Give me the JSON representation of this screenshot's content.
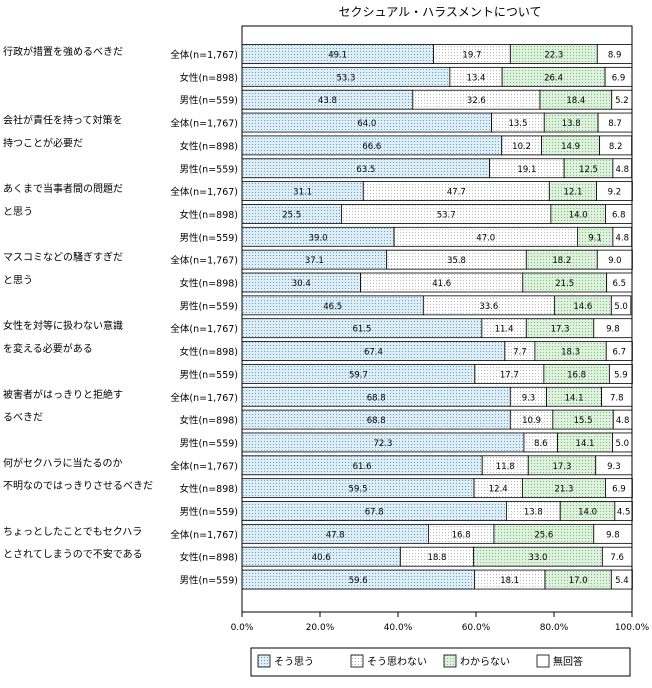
{
  "chart_data": {
    "type": "bar",
    "orientation": "horizontal",
    "stacked": "percent",
    "title": "セクシュアル・ハラスメントについて",
    "xlim": [
      0,
      100
    ],
    "x_ticks": [
      "0.0%",
      "20.0%",
      "40.0%",
      "60.0%",
      "80.0%",
      "100.0%"
    ],
    "grid": false,
    "legend_position": "bottom",
    "series": [
      {
        "name": "そう思う",
        "color": "#ddeef6",
        "pattern": "dots-blue"
      },
      {
        "name": "そう思わない",
        "color": "#ffffff",
        "pattern": "dots-light"
      },
      {
        "name": "わからない",
        "color": "#ddf1dd",
        "pattern": "dots-green"
      },
      {
        "name": "無回答",
        "color": "#ffffff",
        "pattern": "none"
      }
    ],
    "groups": [
      {
        "label": [
          "行政が措置を強めるべきだ"
        ],
        "rows": [
          {
            "name": "全体(n=1,767)",
            "values": [
              49.1,
              19.7,
              22.3,
              8.9
            ]
          },
          {
            "name": "女性(n=898)",
            "values": [
              53.3,
              13.4,
              26.4,
              6.9
            ]
          },
          {
            "name": "男性(n=559)",
            "values": [
              43.8,
              32.6,
              18.4,
              5.2
            ]
          }
        ]
      },
      {
        "label": [
          "会社が責任を持って対策を",
          "持つことが必要だ"
        ],
        "rows": [
          {
            "name": "全体(n=1,767)",
            "values": [
              64.0,
              13.5,
              13.8,
              8.7
            ]
          },
          {
            "name": "女性(n=898)",
            "values": [
              66.6,
              10.2,
              14.9,
              8.2
            ]
          },
          {
            "name": "男性(n=559)",
            "values": [
              63.5,
              19.1,
              12.5,
              4.8
            ]
          }
        ]
      },
      {
        "label": [
          "あくまで当事者間の問題だ",
          "と思う"
        ],
        "rows": [
          {
            "name": "全体(n=1,767)",
            "values": [
              31.1,
              47.7,
              12.1,
              9.2
            ]
          },
          {
            "name": "女性(n=898)",
            "values": [
              25.5,
              53.7,
              14.0,
              6.8
            ]
          },
          {
            "name": "男性(n=559)",
            "values": [
              39.0,
              47.0,
              9.1,
              4.8
            ]
          }
        ]
      },
      {
        "label": [
          "マスコミなどの騒ぎすぎだ",
          "と思う"
        ],
        "rows": [
          {
            "name": "全体(n=1,767)",
            "values": [
              37.1,
              35.8,
              18.2,
              9.0
            ]
          },
          {
            "name": "女性(n=898)",
            "values": [
              30.4,
              41.6,
              21.5,
              6.5
            ]
          },
          {
            "name": "男性(n=559)",
            "values": [
              46.5,
              33.6,
              14.6,
              5.0
            ]
          }
        ]
      },
      {
        "label": [
          "女性を対等に扱わない意識",
          "を変える必要がある"
        ],
        "rows": [
          {
            "name": "全体(n=1,767)",
            "values": [
              61.5,
              11.4,
              17.3,
              9.8
            ]
          },
          {
            "name": "女性(n=898)",
            "values": [
              67.4,
              7.7,
              18.3,
              6.7
            ]
          },
          {
            "name": "男性(n=559)",
            "values": [
              59.7,
              17.7,
              16.8,
              5.9
            ]
          }
        ]
      },
      {
        "label": [
          "被害者がはっきりと拒絶す",
          "るべきだ"
        ],
        "rows": [
          {
            "name": "全体(n=1,767)",
            "values": [
              68.8,
              9.3,
              14.1,
              7.8
            ]
          },
          {
            "name": "女性(n=898)",
            "values": [
              68.8,
              10.9,
              15.5,
              4.8
            ]
          },
          {
            "name": "男性(n=559)",
            "values": [
              72.3,
              8.6,
              14.1,
              5.0
            ]
          }
        ]
      },
      {
        "label": [
          "何がセクハラに当たるのか",
          "不明なのではっきりさせるべきだ"
        ],
        "rows": [
          {
            "name": "全体(n=1,767)",
            "values": [
              61.6,
              11.8,
              17.3,
              9.3
            ]
          },
          {
            "name": "女性(n=898)",
            "values": [
              59.5,
              12.4,
              21.3,
              6.9
            ]
          },
          {
            "name": "男性(n=559)",
            "values": [
              67.8,
              13.8,
              14.0,
              4.5
            ]
          }
        ]
      },
      {
        "label": [
          "ちょっとしたことでもセクハラ",
          "とされてしまうので不安である"
        ],
        "rows": [
          {
            "name": "全体(n=1,767)",
            "values": [
              47.8,
              16.8,
              25.6,
              9.8
            ]
          },
          {
            "name": "女性(n=898)",
            "values": [
              40.6,
              18.8,
              33.0,
              7.6
            ]
          },
          {
            "name": "男性(n=559)",
            "values": [
              59.6,
              18.1,
              17.0,
              5.4
            ]
          }
        ]
      }
    ]
  }
}
